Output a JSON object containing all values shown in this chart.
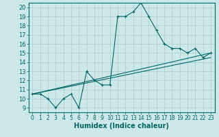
{
  "title": "",
  "xlabel": "Humidex (Indice chaleur)",
  "ylabel": "",
  "background_color": "#cce8e8",
  "grid_color": "#aacccc",
  "line_color": "#006666",
  "xlim": [
    -0.5,
    23.5
  ],
  "ylim": [
    8.5,
    20.5
  ],
  "yticks": [
    9,
    10,
    11,
    12,
    13,
    14,
    15,
    16,
    17,
    18,
    19,
    20
  ],
  "xticks": [
    0,
    1,
    2,
    3,
    4,
    5,
    6,
    7,
    8,
    9,
    10,
    11,
    12,
    13,
    14,
    15,
    16,
    17,
    18,
    19,
    20,
    21,
    22,
    23
  ],
  "main_series_x": [
    0,
    1,
    2,
    3,
    4,
    5,
    6,
    7,
    8,
    9,
    10,
    11,
    12,
    13,
    14,
    15,
    16,
    17,
    18,
    19,
    20,
    21,
    22,
    23
  ],
  "main_series_y": [
    10.5,
    10.5,
    10.0,
    9.0,
    10.0,
    10.5,
    9.0,
    13.0,
    12.0,
    11.5,
    11.5,
    19.0,
    19.0,
    19.5,
    20.5,
    19.0,
    17.5,
    16.0,
    15.5,
    15.5,
    15.0,
    15.5,
    14.5,
    15.0
  ],
  "line1_x": [
    0,
    23
  ],
  "line1_y": [
    10.5,
    14.5
  ],
  "line2_x": [
    0,
    23
  ],
  "line2_y": [
    10.5,
    15.0
  ],
  "xlabel_fontsize": 7,
  "tick_fontsize": 5.5
}
